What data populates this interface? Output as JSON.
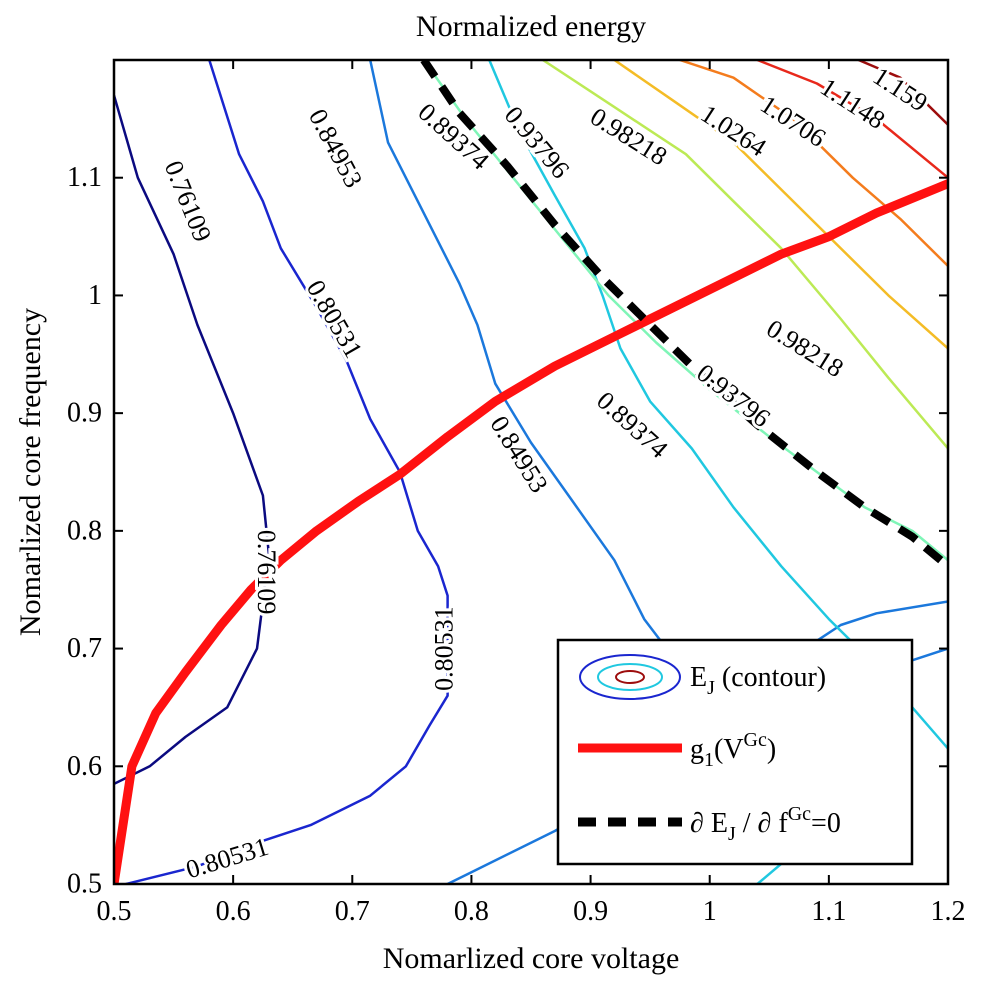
{
  "chart_data": {
    "type": "contour",
    "title": "Normalized energy",
    "xlabel": "Nomarlized core voltage",
    "ylabel": "Nomarlized core frequency",
    "xlim": [
      0.5,
      1.2
    ],
    "ylim": [
      0.5,
      1.2
    ],
    "xticks": [
      0.5,
      0.6,
      0.7,
      0.8,
      0.9,
      1,
      1.1,
      1.2
    ],
    "xtick_labels": [
      "0.5",
      "0.6",
      "0.7",
      "0.8",
      "0.9",
      "1",
      "1.1",
      "1.2"
    ],
    "yticks": [
      0.5,
      0.6,
      0.7,
      0.8,
      0.9,
      1,
      1.1
    ],
    "ytick_labels": [
      "0.5",
      "0.6",
      "0.7",
      "0.8",
      "0.9",
      "1",
      "1.1"
    ],
    "contours": [
      {
        "level": "0.76109",
        "color": "#0b0a80",
        "points": [
          [
            0.5,
            0.585
          ],
          [
            0.53,
            0.6
          ],
          [
            0.56,
            0.625
          ],
          [
            0.595,
            0.65
          ],
          [
            0.62,
            0.7
          ],
          [
            0.63,
            0.78
          ],
          [
            0.625,
            0.83
          ],
          [
            0.6,
            0.9
          ],
          [
            0.57,
            0.975
          ],
          [
            0.55,
            1.035
          ],
          [
            0.52,
            1.1
          ],
          [
            0.5,
            1.17
          ]
        ],
        "labels": [
          {
            "text": "0.76109",
            "x": 0.562,
            "y": 1.08,
            "angle": 68
          },
          {
            "text": "0.76109",
            "x": 0.628,
            "y": 0.765,
            "angle": 90
          }
        ]
      },
      {
        "level": "0.80531",
        "color": "#1a26cf",
        "points": [
          [
            0.51,
            0.5
          ],
          [
            0.57,
            0.515
          ],
          [
            0.62,
            0.535
          ],
          [
            0.665,
            0.55
          ],
          [
            0.715,
            0.575
          ],
          [
            0.745,
            0.6
          ],
          [
            0.765,
            0.635
          ],
          [
            0.78,
            0.66
          ],
          [
            0.78,
            0.745
          ],
          [
            0.772,
            0.77
          ],
          [
            0.755,
            0.8
          ],
          [
            0.74,
            0.85
          ],
          [
            0.715,
            0.895
          ],
          [
            0.695,
            0.945
          ],
          [
            0.67,
            0.99
          ],
          [
            0.64,
            1.04
          ],
          [
            0.625,
            1.08
          ],
          [
            0.605,
            1.12
          ],
          [
            0.58,
            1.2
          ]
        ],
        "labels": [
          {
            "text": "0.80531",
            "x": 0.685,
            "y": 0.98,
            "angle": 60
          },
          {
            "text": "0.80531",
            "x": 0.777,
            "y": 0.7,
            "angle": -90
          },
          {
            "text": "0.80531",
            "x": 0.595,
            "y": 0.522,
            "angle": -17
          }
        ]
      },
      {
        "level": "0.84953",
        "color": "#1b78dc",
        "points": [
          [
            0.78,
            0.5
          ],
          [
            0.8,
            0.51
          ],
          [
            0.87,
            0.545
          ],
          [
            0.93,
            0.58
          ],
          [
            0.975,
            0.62
          ],
          [
            1.0,
            0.66
          ],
          [
            1.04,
            0.68
          ],
          [
            1.08,
            0.7
          ],
          [
            1.11,
            0.72
          ],
          [
            1.14,
            0.73
          ],
          [
            1.2,
            0.74
          ]
        ],
        "labels": []
      },
      {
        "level": "0.84953",
        "color": "#1b78dc",
        "points": [
          [
            0.715,
            1.2
          ],
          [
            0.73,
            1.13
          ],
          [
            0.765,
            1.06
          ],
          [
            0.79,
            1.01
          ],
          [
            0.805,
            0.975
          ],
          [
            0.82,
            0.925
          ],
          [
            0.85,
            0.875
          ],
          [
            0.885,
            0.825
          ],
          [
            0.92,
            0.775
          ],
          [
            0.945,
            0.725
          ],
          [
            0.975,
            0.685
          ],
          [
            1.01,
            0.655
          ],
          [
            1.04,
            0.65
          ],
          [
            1.07,
            0.655
          ],
          [
            1.1,
            0.67
          ],
          [
            1.14,
            0.68
          ],
          [
            1.2,
            0.7
          ]
        ],
        "labels": [
          {
            "text": "0.84953",
            "x": 0.686,
            "y": 1.125,
            "angle": 62
          },
          {
            "text": "0.84953",
            "x": 0.84,
            "y": 0.865,
            "angle": 58
          }
        ]
      },
      {
        "level": "0.89374",
        "color": "#20c8e0",
        "points": [
          [
            0.815,
            1.2
          ],
          [
            0.84,
            1.14
          ],
          [
            0.87,
            1.085
          ],
          [
            0.895,
            1.04
          ],
          [
            0.91,
            1.0
          ],
          [
            0.925,
            0.955
          ],
          [
            0.95,
            0.91
          ],
          [
            0.985,
            0.87
          ],
          [
            1.02,
            0.82
          ],
          [
            1.06,
            0.77
          ],
          [
            1.1,
            0.725
          ],
          [
            1.14,
            0.685
          ],
          [
            1.17,
            0.65
          ],
          [
            1.2,
            0.615
          ]
        ],
        "labels": [
          {
            "text": "0.89374",
            "x": 0.785,
            "y": 1.135,
            "angle": 42
          },
          {
            "text": "0.89374",
            "x": 0.935,
            "y": 0.89,
            "angle": 42
          }
        ]
      },
      {
        "level": "0.89374",
        "color": "#20c8e0",
        "points": [
          [
            1.04,
            0.5
          ],
          [
            1.075,
            0.53
          ],
          [
            1.11,
            0.56
          ]
        ],
        "labels": []
      },
      {
        "level": "0.93796",
        "color": "#7ff5b7",
        "points": [
          [
            0.76,
            1.2
          ],
          [
            0.795,
            1.15
          ],
          [
            0.835,
            1.1
          ],
          [
            0.875,
            1.05
          ],
          [
            0.915,
            1.0
          ],
          [
            0.955,
            0.96
          ],
          [
            1.0,
            0.92
          ],
          [
            1.05,
            0.88
          ],
          [
            1.09,
            0.85
          ],
          [
            1.13,
            0.82
          ],
          [
            1.17,
            0.8
          ],
          [
            1.2,
            0.775
          ]
        ],
        "labels": [
          {
            "text": "0.93796",
            "x": 0.855,
            "y": 1.13,
            "angle": 50
          },
          {
            "text": "0.93796",
            "x": 1.02,
            "y": 0.915,
            "angle": 38
          }
        ]
      },
      {
        "level": "0.98218",
        "color": "#bcea55",
        "points": [
          [
            0.86,
            1.2
          ],
          [
            0.92,
            1.16
          ],
          [
            0.98,
            1.12
          ],
          [
            1.02,
            1.08
          ],
          [
            1.06,
            1.04
          ],
          [
            1.11,
            0.98
          ],
          [
            1.15,
            0.93
          ],
          [
            1.2,
            0.87
          ]
        ],
        "labels": [
          {
            "text": "0.98218",
            "x": 0.932,
            "y": 1.135,
            "angle": 32
          },
          {
            "text": "0.98218",
            "x": 1.08,
            "y": 0.955,
            "angle": 32
          }
        ]
      },
      {
        "level": "1.0264",
        "color": "#f4bc26",
        "points": [
          [
            0.92,
            1.2
          ],
          [
            0.97,
            1.165
          ],
          [
            1.02,
            1.13
          ],
          [
            1.06,
            1.09
          ],
          [
            1.1,
            1.05
          ],
          [
            1.15,
            1.0
          ],
          [
            1.2,
            0.955
          ]
        ],
        "labels": [
          {
            "text": "1.0264",
            "x": 1.02,
            "y": 1.14,
            "angle": 33
          }
        ]
      },
      {
        "level": "1.0706",
        "color": "#f47c1d",
        "points": [
          [
            0.975,
            1.2
          ],
          [
            1.02,
            1.185
          ],
          [
            1.07,
            1.15
          ],
          [
            1.12,
            1.1
          ],
          [
            1.16,
            1.065
          ],
          [
            1.2,
            1.025
          ]
        ],
        "labels": [
          {
            "text": "1.0706",
            "x": 1.07,
            "y": 1.148,
            "angle": 33
          }
        ]
      },
      {
        "level": "1.1148",
        "color": "#e8281b",
        "points": [
          [
            1.04,
            1.2
          ],
          [
            1.09,
            1.18
          ],
          [
            1.14,
            1.15
          ],
          [
            1.2,
            1.1
          ]
        ],
        "labels": [
          {
            "text": "1.1148",
            "x": 1.12,
            "y": 1.163,
            "angle": 33
          }
        ]
      },
      {
        "level": "1.159",
        "color": "#9d0d0d",
        "points": [
          [
            1.125,
            1.2
          ],
          [
            1.16,
            1.185
          ],
          [
            1.2,
            1.145
          ]
        ],
        "labels": [
          {
            "text": "1.159",
            "x": 1.16,
            "y": 1.175,
            "angle": 33
          }
        ]
      }
    ],
    "series": [
      {
        "name": "g1(VGc)",
        "style": "thick-solid",
        "color": "#ff1111",
        "points": [
          [
            0.5,
            0.5
          ],
          [
            0.515,
            0.6
          ],
          [
            0.535,
            0.645
          ],
          [
            0.56,
            0.68
          ],
          [
            0.59,
            0.72
          ],
          [
            0.615,
            0.75
          ],
          [
            0.64,
            0.775
          ],
          [
            0.67,
            0.8
          ],
          [
            0.705,
            0.825
          ],
          [
            0.74,
            0.848
          ],
          [
            0.78,
            0.88
          ],
          [
            0.82,
            0.91
          ],
          [
            0.87,
            0.94
          ],
          [
            0.92,
            0.965
          ],
          [
            0.97,
            0.99
          ],
          [
            1.02,
            1.015
          ],
          [
            1.06,
            1.035
          ],
          [
            1.1,
            1.05
          ],
          [
            1.14,
            1.07
          ],
          [
            1.2,
            1.095
          ]
        ]
      },
      {
        "name": "∂EJ/∂fGc=0",
        "style": "thick-dashed",
        "color": "#000000",
        "points": [
          [
            0.76,
            1.2
          ],
          [
            0.79,
            1.155
          ],
          [
            0.83,
            1.11
          ],
          [
            0.87,
            1.06
          ],
          [
            0.91,
            1.015
          ],
          [
            0.945,
            0.98
          ],
          [
            0.99,
            0.935
          ],
          [
            1.04,
            0.89
          ],
          [
            1.09,
            0.85
          ],
          [
            1.13,
            0.82
          ],
          [
            1.17,
            0.795
          ],
          [
            1.2,
            0.77
          ]
        ]
      }
    ],
    "legend": {
      "placement": "bottom-right",
      "entries": [
        {
          "key": "contour",
          "main": "E",
          "sub": "J",
          "rest": " (contour)"
        },
        {
          "key": "g1",
          "main": "g",
          "sub": "1",
          "mid": "(V",
          "sup": "Gc",
          "rest": ")"
        },
        {
          "key": "dashed",
          "main": "∂ E",
          "sub": "J",
          "mid": " / ∂ f",
          "sup": "Gc",
          "rest": "=0"
        }
      ]
    }
  }
}
